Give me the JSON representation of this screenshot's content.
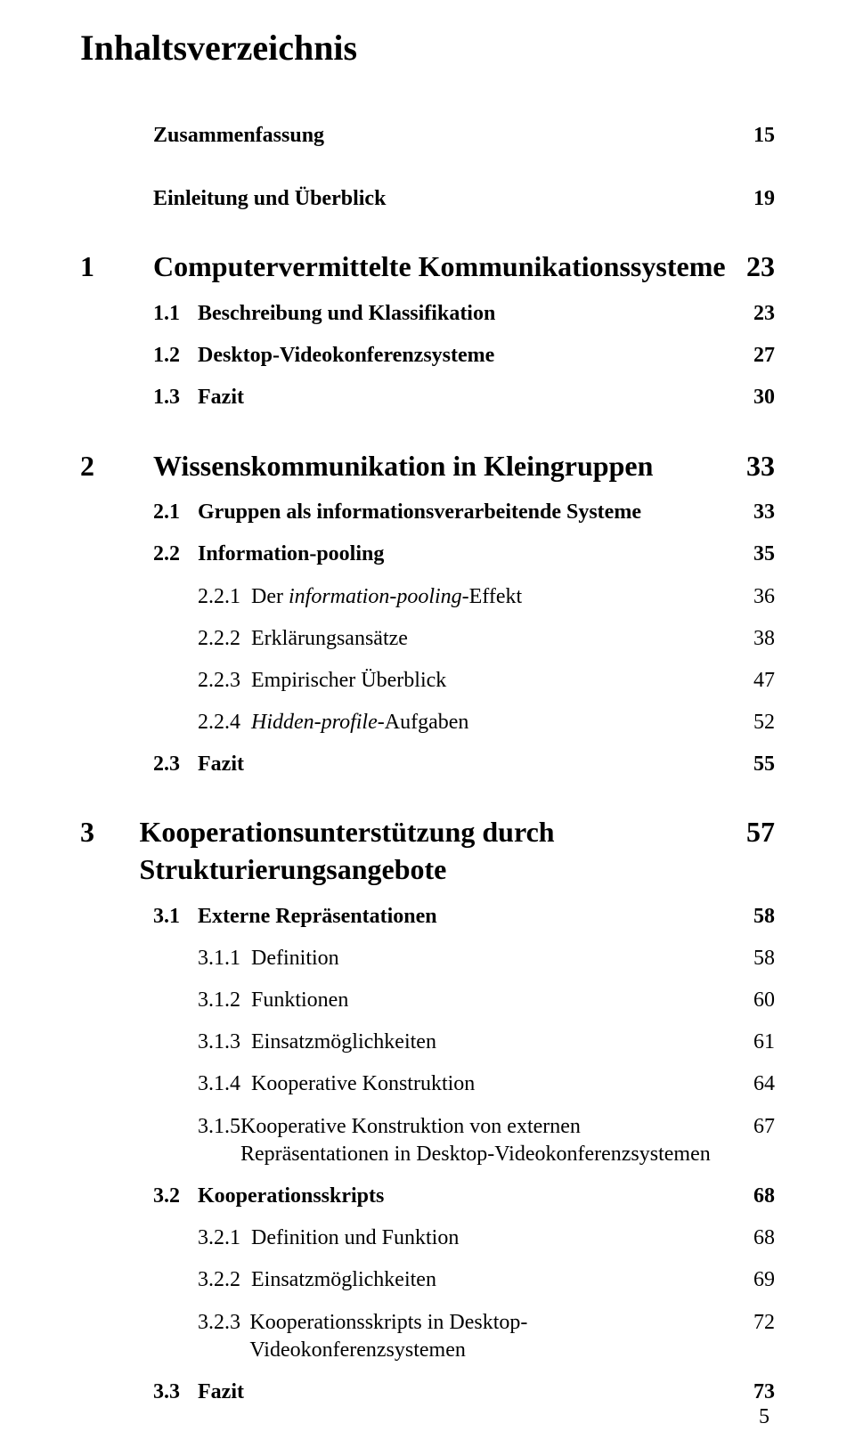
{
  "colors": {
    "text": "#000000",
    "background": "#ffffff"
  },
  "typography": {
    "font_family": "Times New Roman",
    "title_fontsize_pt": 30,
    "chapter_fontsize_pt": 24,
    "body_fontsize_pt": 18
  },
  "page_number": "5",
  "title": "Inhaltsverzeichnis",
  "entries": [
    {
      "level": "lvl0",
      "weight": "bold",
      "italic": false,
      "num": "",
      "label": "Zusammenfassung",
      "page": "15",
      "gap": true
    },
    {
      "level": "lvl0",
      "weight": "bold",
      "italic": false,
      "num": "",
      "label": "Einleitung und Überblick",
      "page": "19",
      "gap": true
    },
    {
      "level": "chapter",
      "weight": "bold",
      "italic": false,
      "num": "1",
      "label": "Computervermittelte Kommunikationssysteme",
      "page": "23",
      "gap": true
    },
    {
      "level": "lvl1",
      "weight": "bold",
      "italic": false,
      "num": "1.1",
      "label": "Beschreibung und Klassifikation",
      "page": "23"
    },
    {
      "level": "lvl1",
      "weight": "bold",
      "italic": false,
      "num": "1.2",
      "label": "Desktop-Videokonferenzsysteme",
      "page": "27"
    },
    {
      "level": "lvl1",
      "weight": "bold",
      "italic": false,
      "num": "1.3",
      "label": "Fazit",
      "page": "30"
    },
    {
      "level": "chapter",
      "weight": "bold",
      "italic": false,
      "num": "2",
      "label": "Wissenskommunikation in Kleingruppen",
      "page": "33",
      "gap": true
    },
    {
      "level": "lvl1",
      "weight": "bold",
      "italic": false,
      "num": "2.1",
      "label": "Gruppen als informationsverarbeitende Systeme",
      "page": "33"
    },
    {
      "level": "lvl1",
      "weight": "bold",
      "italic": false,
      "num": "2.2",
      "label": "Information-pooling",
      "page": "35"
    },
    {
      "level": "lvl2",
      "weight": "normal",
      "italic": false,
      "num": "2.2.1",
      "label_html": "Der <em>information-pooling</em>-Effekt",
      "page": "36"
    },
    {
      "level": "lvl2",
      "weight": "normal",
      "italic": false,
      "num": "2.2.2",
      "label": "Erklärungsansätze",
      "page": "38"
    },
    {
      "level": "lvl2",
      "weight": "normal",
      "italic": false,
      "num": "2.2.3",
      "label": "Empirischer Überblick",
      "page": "47"
    },
    {
      "level": "lvl2",
      "weight": "normal",
      "italic": false,
      "num": "2.2.4",
      "label_html": "<em>Hidden-profile</em>-Aufgaben",
      "page": "52"
    },
    {
      "level": "lvl1",
      "weight": "bold",
      "italic": false,
      "num": "2.3",
      "label": "Fazit",
      "page": "55"
    },
    {
      "level": "chapter",
      "weight": "bold",
      "italic": false,
      "num": "3",
      "label": "Kooperationsunterstützung durch Strukturierungsangebote",
      "page": "57",
      "gap": true
    },
    {
      "level": "lvl1",
      "weight": "bold",
      "italic": false,
      "num": "3.1",
      "label": "Externe Repräsentationen",
      "page": "58"
    },
    {
      "level": "lvl2",
      "weight": "normal",
      "italic": false,
      "num": "3.1.1",
      "label": "Definition",
      "page": "58"
    },
    {
      "level": "lvl2",
      "weight": "normal",
      "italic": false,
      "num": "3.1.2",
      "label": "Funktionen",
      "page": "60"
    },
    {
      "level": "lvl2",
      "weight": "normal",
      "italic": false,
      "num": "3.1.3",
      "label": "Einsatzmöglichkeiten",
      "page": "61"
    },
    {
      "level": "lvl2",
      "weight": "normal",
      "italic": false,
      "num": "3.1.4",
      "label": "Kooperative Konstruktion",
      "page": "64"
    },
    {
      "level": "lvl2",
      "weight": "normal",
      "italic": false,
      "num": "3.1.5",
      "label": "Kooperative Konstruktion von externen Repräsentationen in Desktop-Videokonferenzsystemen",
      "page": "67",
      "multiline": true
    },
    {
      "level": "lvl1",
      "weight": "bold",
      "italic": false,
      "num": "3.2",
      "label": "Kooperationsskripts",
      "page": "68"
    },
    {
      "level": "lvl2",
      "weight": "normal",
      "italic": false,
      "num": "3.2.1",
      "label": "Definition und Funktion",
      "page": "68"
    },
    {
      "level": "lvl2",
      "weight": "normal",
      "italic": false,
      "num": "3.2.2",
      "label": "Einsatzmöglichkeiten",
      "page": "69"
    },
    {
      "level": "lvl2",
      "weight": "normal",
      "italic": false,
      "num": "3.2.3",
      "label": "Kooperationsskripts in Desktop-Videokonferenzsystemen",
      "page": "72"
    },
    {
      "level": "lvl1",
      "weight": "bold",
      "italic": false,
      "num": "3.3",
      "label": "Fazit",
      "page": "73"
    }
  ]
}
